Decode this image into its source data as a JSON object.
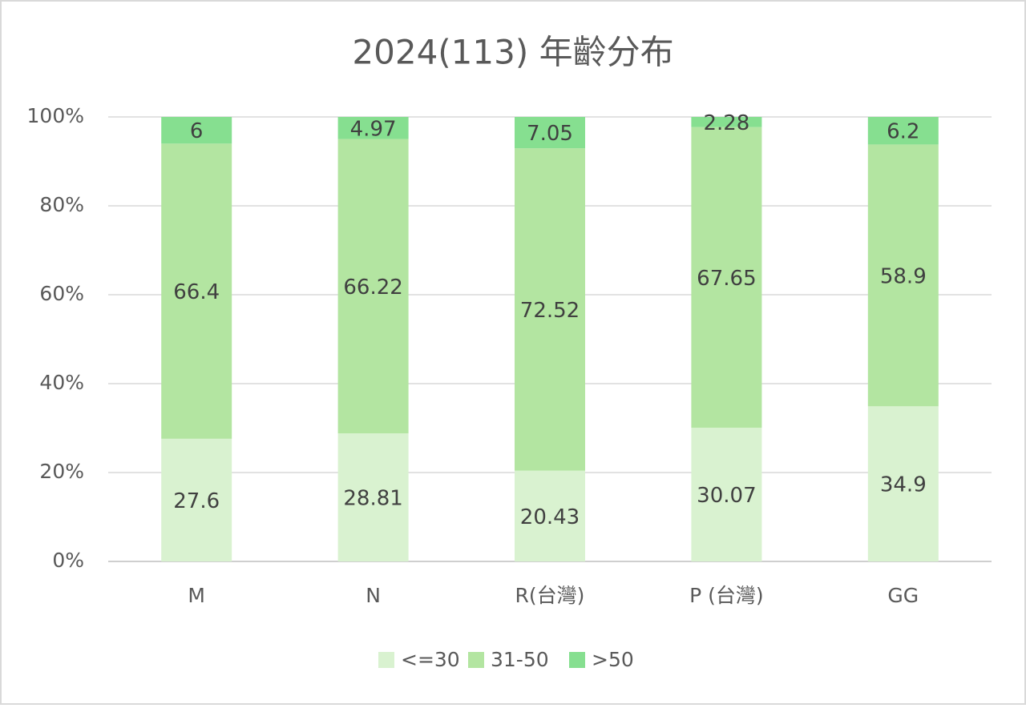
{
  "chart_data": {
    "type": "bar",
    "stacked": true,
    "title": "2024(113) 年齡分布",
    "categories": [
      "M",
      "N",
      "R(台灣)",
      "P (台灣)",
      "GG"
    ],
    "series": [
      {
        "name": "<=30",
        "color": "#d9f2d0",
        "values": [
          27.6,
          28.81,
          20.43,
          30.07,
          34.9
        ]
      },
      {
        "name": "31-50",
        "color": "#b3e5a1",
        "values": [
          66.4,
          66.22,
          72.52,
          67.65,
          58.9
        ]
      },
      {
        "name": ">50",
        "color": "#86df90",
        "values": [
          6,
          4.97,
          7.05,
          2.28,
          6.2
        ]
      }
    ],
    "ylim": [
      0,
      100
    ],
    "yticks": [
      {
        "value": 0,
        "label": "0%"
      },
      {
        "value": 20,
        "label": "20%"
      },
      {
        "value": 40,
        "label": "40%"
      },
      {
        "value": 60,
        "label": "60%"
      },
      {
        "value": 80,
        "label": "80%"
      },
      {
        "value": 100,
        "label": "100%"
      }
    ],
    "grid": true,
    "legend": "bottom"
  }
}
